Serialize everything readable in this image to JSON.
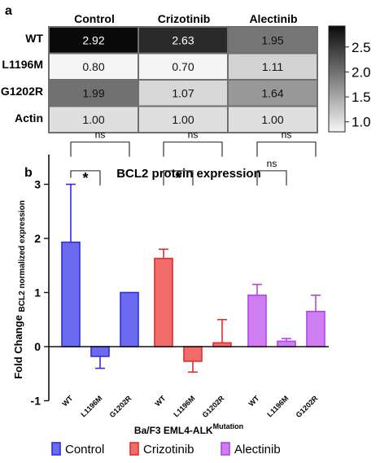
{
  "panel_a": {
    "letter": "a",
    "columns": [
      "Control",
      "Crizotinib",
      "Alectinib"
    ],
    "rows": [
      "WT",
      "L1196M",
      "G1202R",
      "Actin"
    ],
    "values": [
      [
        "2.92",
        "2.63",
        "1.95"
      ],
      [
        "0.80",
        "0.70",
        "1.11"
      ],
      [
        "1.99",
        "1.07",
        "1.64"
      ],
      [
        "1.00",
        "1.00",
        "1.00"
      ]
    ],
    "colorbar_ticks": [
      "2.5",
      "2.0",
      "1.5",
      "1.0"
    ]
  },
  "panel_b": {
    "letter": "b",
    "title": "BCL2 protein expression",
    "ylabel_main": "Fold Change",
    "ylabel_sub": "BCL2 normalized expression",
    "xlabel_main": "Ba/F3 EML4-ALK",
    "xlabel_sup": "Mutation",
    "y_ticks": [
      "3",
      "2",
      "1",
      "0",
      "-1"
    ],
    "legend": [
      "Control",
      "Crizotinib",
      "Alectinib"
    ],
    "sig_labels": [
      "*",
      "ns",
      "*",
      "ns",
      "ns",
      "ns"
    ]
  },
  "chart_data": [
    {
      "type": "heatmap",
      "x_categories": [
        "Control",
        "Crizotinib",
        "Alectinib"
      ],
      "y_categories": [
        "WT",
        "L1196M",
        "G1202R",
        "Actin"
      ],
      "values": [
        [
          2.92,
          2.63,
          1.95
        ],
        [
          0.8,
          0.7,
          1.11
        ],
        [
          1.99,
          1.07,
          1.64
        ],
        [
          1.0,
          1.0,
          1.0
        ]
      ],
      "colorscale": "greys",
      "colorbar_range": [
        0.8,
        2.92
      ],
      "colorbar_ticks": [
        2.5,
        2.0,
        1.5,
        1.0
      ]
    },
    {
      "type": "bar",
      "title": "BCL2 protein expression",
      "ylabel": "Fold Change BCL2 normalized expression",
      "xlabel": "Ba/F3 EML4-ALK Mutation",
      "ylim": [
        -1,
        3.5
      ],
      "categories": [
        "WT",
        "L1196M",
        "G1202R"
      ],
      "series": [
        {
          "name": "Control",
          "color": "#6b6bf2",
          "edge": "#2e2ee0",
          "values": [
            1.93,
            -0.18,
            1.0
          ],
          "errors": [
            1.07,
            0.22,
            0.0
          ]
        },
        {
          "name": "Crizotinib",
          "color": "#f26b6b",
          "edge": "#e02e2e",
          "values": [
            1.63,
            -0.27,
            0.07
          ],
          "errors": [
            0.17,
            0.2,
            0.43
          ]
        },
        {
          "name": "Alectinib",
          "color": "#cf7ef2",
          "edge": "#b444e6",
          "values": [
            0.95,
            0.1,
            0.65
          ],
          "errors": [
            0.2,
            0.05,
            0.3
          ]
        }
      ],
      "comparisons": [
        {
          "group": "Control",
          "from": "WT",
          "to": "L1196M",
          "label": "*"
        },
        {
          "group": "Control",
          "from": "WT",
          "to": "G1202R",
          "label": "ns"
        },
        {
          "group": "Crizotinib",
          "from": "WT",
          "to": "L1196M",
          "label": "*"
        },
        {
          "group": "Crizotinib",
          "from": "WT",
          "to": "G1202R",
          "label": "ns"
        },
        {
          "group": "Alectinib",
          "from": "WT",
          "to": "L1196M",
          "label": "ns"
        },
        {
          "group": "Alectinib",
          "from": "WT",
          "to": "G1202R",
          "label": "ns"
        }
      ],
      "legend_position": "bottom"
    }
  ]
}
